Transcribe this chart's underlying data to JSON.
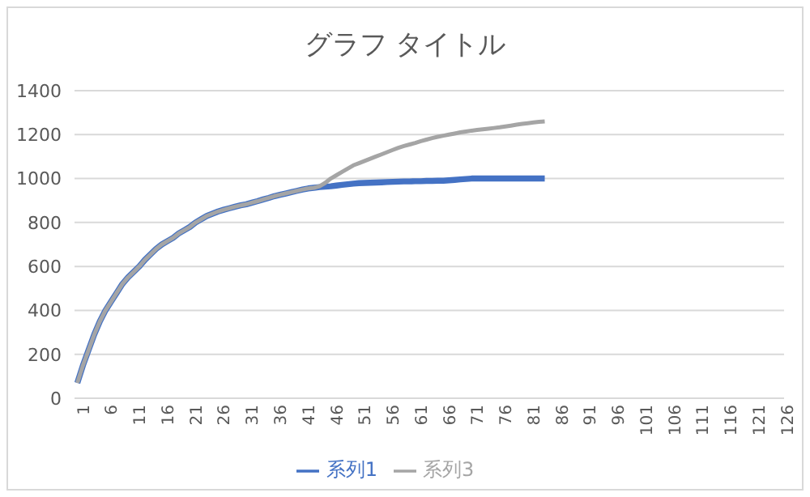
{
  "chart_data": {
    "type": "line",
    "title": "グラフ タイトル",
    "x": [
      1,
      2,
      3,
      4,
      5,
      6,
      7,
      8,
      9,
      10,
      11,
      12,
      13,
      14,
      15,
      16,
      17,
      18,
      19,
      20,
      21,
      22,
      23,
      24,
      25,
      26,
      27,
      28,
      29,
      30,
      31,
      32,
      33,
      34,
      35,
      36,
      37,
      38,
      39,
      40,
      41,
      42,
      43,
      44,
      45,
      46,
      47,
      48,
      49,
      50,
      51,
      52,
      53,
      54,
      55,
      56,
      57,
      58,
      59,
      60,
      61,
      62,
      63,
      64,
      65,
      66,
      67,
      68,
      69,
      70,
      71,
      72,
      73,
      74,
      75,
      76,
      77,
      78,
      79,
      80,
      81,
      82,
      83,
      84
    ],
    "series": [
      {
        "name": "系列1",
        "color": "#4472c4",
        "values": [
          70,
          150,
          220,
          290,
          350,
          400,
          440,
          480,
          520,
          550,
          575,
          600,
          630,
          655,
          680,
          700,
          715,
          730,
          750,
          765,
          780,
          800,
          815,
          830,
          840,
          850,
          858,
          865,
          872,
          878,
          883,
          890,
          897,
          905,
          912,
          920,
          926,
          932,
          938,
          944,
          950,
          955,
          958,
          961,
          963,
          965,
          968,
          971,
          974,
          977,
          979,
          980,
          981,
          982,
          983,
          984,
          985,
          986,
          987,
          987,
          988,
          988,
          989,
          989,
          990,
          990,
          992,
          994,
          996,
          998,
          1000,
          1000,
          1000,
          1000,
          1000,
          1000,
          1000,
          1000,
          1000,
          1000,
          1000,
          1000,
          1000,
          1000
        ]
      },
      {
        "name": "系列3",
        "color": "#a5a5a5",
        "values": [
          70,
          150,
          220,
          290,
          350,
          400,
          440,
          480,
          520,
          550,
          575,
          600,
          630,
          655,
          680,
          700,
          715,
          730,
          750,
          765,
          780,
          800,
          815,
          830,
          840,
          850,
          858,
          865,
          872,
          878,
          883,
          890,
          897,
          905,
          912,
          920,
          926,
          932,
          938,
          944,
          950,
          955,
          958,
          965,
          980,
          1000,
          1015,
          1030,
          1045,
          1060,
          1070,
          1080,
          1090,
          1100,
          1110,
          1120,
          1130,
          1140,
          1148,
          1155,
          1162,
          1170,
          1177,
          1184,
          1190,
          1195,
          1200,
          1205,
          1210,
          1214,
          1218,
          1221,
          1224,
          1227,
          1230,
          1233,
          1237,
          1241,
          1245,
          1249,
          1252,
          1255,
          1258,
          1260
        ]
      }
    ],
    "xlim": [
      0.5,
      126.5
    ],
    "xticks": [
      1,
      6,
      11,
      16,
      21,
      26,
      31,
      36,
      41,
      46,
      51,
      56,
      61,
      66,
      71,
      76,
      81,
      86,
      91,
      96,
      101,
      106,
      111,
      116,
      121,
      126
    ],
    "ylim": [
      0,
      1400
    ],
    "yticks": [
      0,
      200,
      400,
      600,
      800,
      1000,
      1200,
      1400
    ],
    "grid": "y",
    "legend": "bottom",
    "marker": "none",
    "line_style": "solid"
  }
}
